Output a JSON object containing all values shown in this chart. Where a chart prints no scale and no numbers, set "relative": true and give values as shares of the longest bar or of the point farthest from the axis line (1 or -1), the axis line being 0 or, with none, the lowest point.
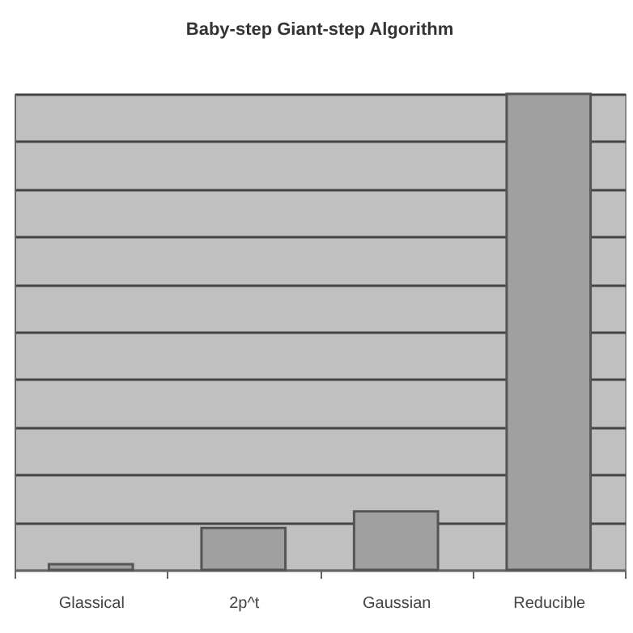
{
  "chart_data": {
    "type": "bar",
    "title": "Baby-step Giant-step Algorithm",
    "categories": [
      "Glassical",
      "2p^t",
      "Gaussian",
      "Reducible"
    ],
    "values": [
      0.012,
      0.088,
      0.123,
      1
    ],
    "color": "#a0a0a0",
    "relative": true,
    "grid": "y"
  }
}
